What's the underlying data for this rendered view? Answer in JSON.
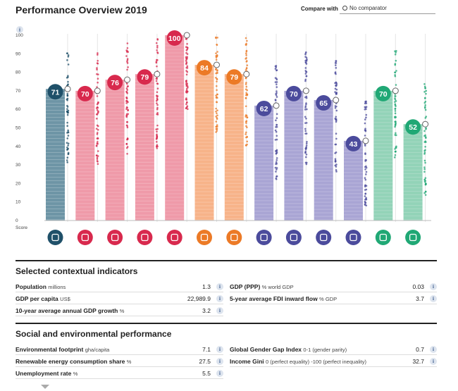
{
  "header": {
    "title": "Performance Overview 2019",
    "compare_label": "Compare with",
    "comparator_value": "No comparator"
  },
  "chart_data": {
    "type": "bar",
    "y_axis_label": "Score",
    "ylim": [
      0,
      100
    ],
    "y_ticks": [
      "0",
      "10",
      "20",
      "30",
      "40",
      "50",
      "60",
      "70",
      "80",
      "90",
      "100"
    ],
    "categories": [
      {
        "icon": "location-pin-icon",
        "value": 71,
        "comparator": 71,
        "color": "#6e95a6",
        "badge": "#1f5069"
      },
      {
        "icon": "government-building-icon",
        "value": 70,
        "comparator": 70,
        "color": "#ef9aa9",
        "badge": "#d8294d"
      },
      {
        "icon": "transport-icon",
        "value": 76,
        "comparator": 76,
        "color": "#ef9aa9",
        "badge": "#d8294d"
      },
      {
        "icon": "chip-icon",
        "value": 79,
        "comparator": 79,
        "color": "#ef9aa9",
        "badge": "#d8294d"
      },
      {
        "icon": "percent-icon",
        "value": 100,
        "comparator": 100,
        "color": "#ef9aa9",
        "badge": "#d8294d"
      },
      {
        "icon": "heart-pulse-icon",
        "value": 84,
        "comparator": 84,
        "color": "#f7b389",
        "badge": "#ec7a26"
      },
      {
        "icon": "graduate-icon",
        "value": 79,
        "comparator": 79,
        "color": "#f7b389",
        "badge": "#ec7a26"
      },
      {
        "icon": "price-tag-icon",
        "value": 62,
        "comparator": 62,
        "color": "#a9a5d4",
        "badge": "#4b4b9c"
      },
      {
        "icon": "people-icon",
        "value": 70,
        "comparator": 70,
        "color": "#a9a5d4",
        "badge": "#4b4b9c"
      },
      {
        "icon": "credit-card-icon",
        "value": 65,
        "comparator": 65,
        "color": "#a9a5d4",
        "badge": "#4b4b9c"
      },
      {
        "icon": "expand-arrow-icon",
        "value": 43,
        "comparator": 43,
        "color": "#a9a5d4",
        "badge": "#4b4b9c"
      },
      {
        "icon": "document-icon",
        "value": 70,
        "comparator": 70,
        "color": "#93d3b8",
        "badge": "#20a875"
      },
      {
        "icon": "lightbulb-icon",
        "value": 52,
        "comparator": 52,
        "color": "#93d3b8",
        "badge": "#20a875"
      }
    ]
  },
  "contextual": {
    "title": "Selected contextual indicators",
    "left": [
      {
        "label": "Population",
        "unit": "millions",
        "value": "1.3"
      },
      {
        "label": "GDP per capita",
        "unit": "US$",
        "value": "22,989.9"
      },
      {
        "label": "10-year average annual GDP growth",
        "unit": "%",
        "value": "3.2"
      }
    ],
    "right": [
      {
        "label": "GDP (PPP)",
        "unit": "% world GDP",
        "value": "0.03"
      },
      {
        "label": "5-year average FDI inward flow",
        "unit": "% GDP",
        "value": "3.7"
      }
    ]
  },
  "social": {
    "title": "Social and environmental performance",
    "left": [
      {
        "label": "Environmental footprint",
        "unit": "gha/capita",
        "value": "7.1"
      },
      {
        "label": "Renewable energy consumption share",
        "unit": "%",
        "value": "27.5"
      },
      {
        "label": "Unemployment rate",
        "unit": "%",
        "value": "5.5"
      }
    ],
    "right": [
      {
        "label": "Global Gender Gap Index",
        "unit": "0-1 (gender parity)",
        "value": "0.7"
      },
      {
        "label": "Income Gini",
        "unit": "0 (perfect equality) -100 (perfect inequality)",
        "value": "32.7"
      }
    ]
  },
  "info_glyph": "i"
}
